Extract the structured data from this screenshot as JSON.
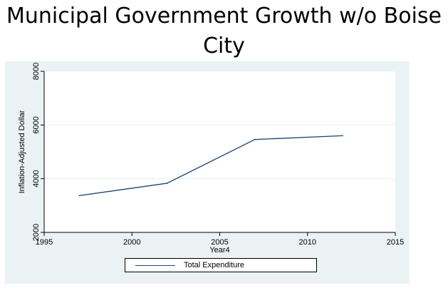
{
  "title": "Municipal Government Growth w/o Boise City",
  "colors": {
    "panel_background": "#eaf2f3",
    "plot_background": "#ffffff",
    "series_line": "#1a476f",
    "gridline": "#eaf2f3"
  },
  "chart_data": {
    "type": "line",
    "title": "Municipal Government Growth w/o Boise City",
    "xlabel": "Year4",
    "ylabel": "Inflation-Adjusted Dollar",
    "xlim": [
      1995,
      2015
    ],
    "ylim": [
      2000,
      8000
    ],
    "xticks": [
      1995,
      2000,
      2005,
      2010,
      2015
    ],
    "yticks": [
      2000,
      4000,
      6000,
      8000
    ],
    "grid": true,
    "legend_position": "bottom",
    "series": [
      {
        "name": "Total Expenditure",
        "x": [
          1997,
          2002,
          2007,
          2012
        ],
        "values": [
          3370,
          3830,
          5460,
          5600
        ]
      }
    ]
  }
}
